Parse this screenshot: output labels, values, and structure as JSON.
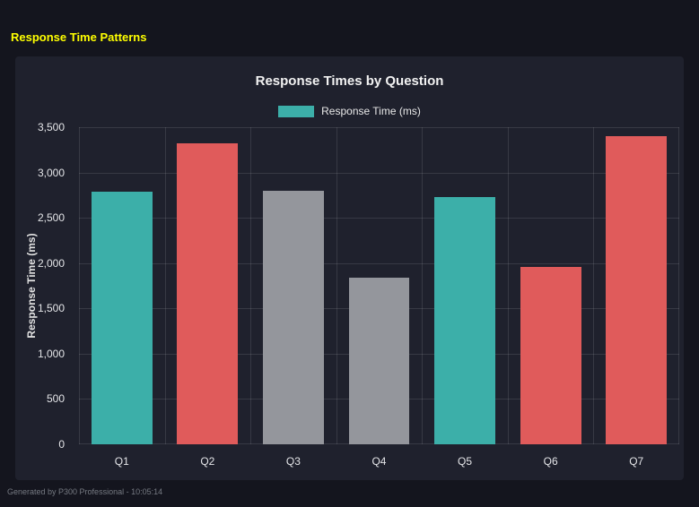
{
  "page": {
    "title": "Response Time Patterns",
    "footer": "Generated by P300 Professional - 10:05:14"
  },
  "chart_data": {
    "type": "bar",
    "title": "Response Times by Question",
    "legend": [
      {
        "label": "Response Time (ms)",
        "color": "#3cafa9"
      }
    ],
    "legend_position": "top",
    "categories": [
      "Q1",
      "Q2",
      "Q3",
      "Q4",
      "Q5",
      "Q6",
      "Q7"
    ],
    "values": [
      2790,
      3320,
      2800,
      1840,
      2730,
      1960,
      3400
    ],
    "bar_colors": [
      "#3cafa9",
      "#e05b5b",
      "#94969c",
      "#94969c",
      "#3cafa9",
      "#e05b5b",
      "#e05b5b"
    ],
    "xlabel": "",
    "ylabel": "Response Time (ms)",
    "ylim": [
      0,
      3500
    ],
    "yticks": [
      0,
      500,
      1000,
      1500,
      2000,
      2500,
      3000,
      3500
    ],
    "ytick_labels": [
      "0",
      "500",
      "1,000",
      "1,500",
      "2,000",
      "2,500",
      "3,000",
      "3,500"
    ],
    "grid": true,
    "colors": {
      "page_background": "#14151e",
      "panel_background": "#1f212d",
      "gridline": "rgba(255,255,255,0.11)",
      "title_yellow": "#ffff00",
      "teal": "#3cafa9",
      "red": "#e05b5b",
      "gray": "#94969c"
    }
  }
}
